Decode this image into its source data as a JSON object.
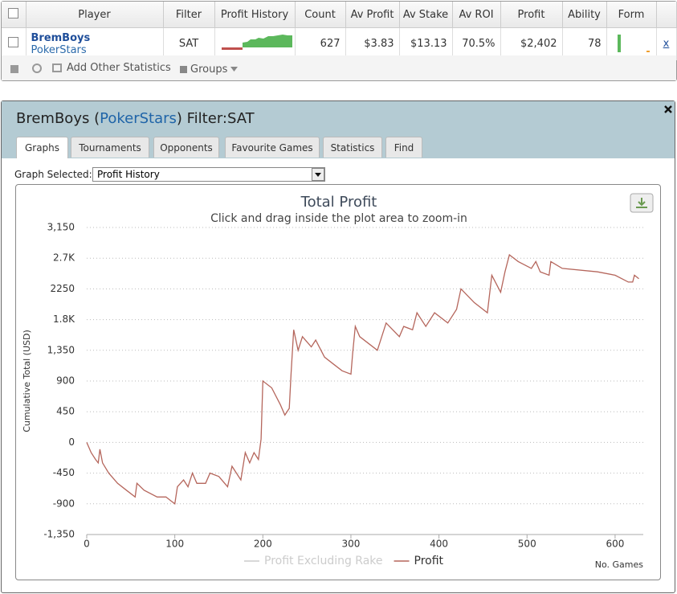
{
  "table": {
    "headers": [
      "Player",
      "Filter",
      "Profit History",
      "Count",
      "Av Profit",
      "Av Stake",
      "Av ROI",
      "Profit",
      "Ability",
      "Form"
    ],
    "row": {
      "player": "BremBoys",
      "site": "PokerStars",
      "filter": "SAT",
      "count": "627",
      "av_profit": "$3.83",
      "av_stake": "$13.13",
      "av_roi": "70.5%",
      "profit": "$2,402",
      "ability": "78",
      "remove": "x"
    }
  },
  "toolbar": {
    "add_stats": "Add Other Statistics",
    "groups": "Groups"
  },
  "panel": {
    "title": [
      "BremBoys (",
      "PokerStars",
      ") Filter:SAT"
    ],
    "tabs": [
      "Graphs",
      "Tournaments",
      "Opponents",
      "Favourite Games",
      "Statistics",
      "Find"
    ],
    "graph_selected_label": "Graph Selected:",
    "graph_selected": "Profit History"
  },
  "chart_data": {
    "type": "line",
    "title": "Total Profit",
    "subtitle": "Click and drag inside the plot area to zoom-in",
    "y_label": "Cumulative Total (USD)",
    "x_label": "No. Games",
    "x": [
      0,
      5,
      10,
      13,
      15,
      18,
      25,
      35,
      45,
      55,
      57,
      65,
      80,
      90,
      95,
      100,
      103,
      110,
      115,
      120,
      125,
      135,
      140,
      150,
      160,
      165,
      175,
      180,
      185,
      190,
      195,
      198,
      200,
      210,
      220,
      225,
      230,
      232,
      235,
      240,
      245,
      255,
      260,
      270,
      280,
      290,
      300,
      302,
      305,
      310,
      320,
      330,
      340,
      355,
      360,
      370,
      375,
      385,
      395,
      410,
      420,
      425,
      440,
      455,
      460,
      470,
      475,
      480,
      490,
      505,
      510,
      515,
      525,
      527,
      540,
      580,
      600,
      615,
      620,
      622,
      627
    ],
    "series": [
      {
        "name": "Profit Excluding Rake",
        "color": "#cccccc",
        "hidden": true
      },
      {
        "name": "Profit",
        "color": "#b5665c",
        "values": [
          0,
          -150,
          -250,
          -300,
          -100,
          -300,
          -450,
          -600,
          -700,
          -800,
          -600,
          -700,
          -800,
          -800,
          -850,
          -900,
          -650,
          -550,
          -650,
          -450,
          -600,
          -600,
          -450,
          -500,
          -650,
          -350,
          -550,
          -150,
          -300,
          -150,
          -250,
          50,
          900,
          800,
          550,
          400,
          500,
          1000,
          1650,
          1350,
          1550,
          1400,
          1500,
          1250,
          1150,
          1050,
          1000,
          1300,
          1700,
          1550,
          1450,
          1350,
          1750,
          1550,
          1700,
          1650,
          1900,
          1700,
          1900,
          1750,
          1950,
          2250,
          2050,
          1900,
          2450,
          2200,
          2500,
          2750,
          2650,
          2550,
          2650,
          2500,
          2450,
          2650,
          2550,
          2500,
          2450,
          2350,
          2350,
          2450,
          2400
        ]
      }
    ],
    "xlim": [
      0,
      632
    ],
    "xticks": [
      0,
      100,
      200,
      300,
      400,
      500,
      600
    ],
    "ylim": [
      -1350,
      3150
    ],
    "yticks": [
      {
        "value": -1350,
        "label": "-1,350"
      },
      -900,
      -450,
      0,
      450,
      900,
      {
        "value": 1350,
        "label": "1,350"
      },
      {
        "value": 1800,
        "label": "1.8K"
      },
      2250,
      {
        "value": 2700,
        "label": "2.7K"
      },
      {
        "value": 3150,
        "label": "3,150"
      }
    ],
    "grid": true
  }
}
